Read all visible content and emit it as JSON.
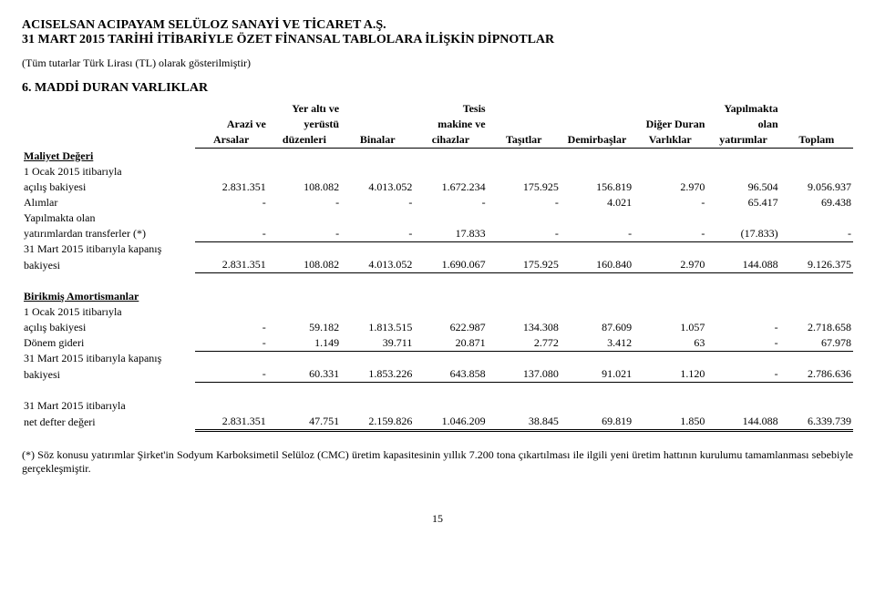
{
  "header": {
    "company": "ACISELSAN ACIPAYAM SELÜLOZ SANAYİ VE TİCARET A.Ş.",
    "report": "31 MART 2015 TARİHİ İTİBARİYLE ÖZET FİNANSAL TABLOLARA İLİŞKİN DİPNOTLAR",
    "currency_note": "(Tüm tutarlar Türk Lirası (TL) olarak gösterilmiştir)"
  },
  "section": {
    "number_title": "6.    MADDİ DURAN VARLIKLAR"
  },
  "columns": {
    "c1a": "Arazi ve",
    "c1b": "Arsalar",
    "c2a": "Yer altı ve",
    "c2b": "yerüstü",
    "c2c": "düzenleri",
    "c3": "Binalar",
    "c4a": "Tesis",
    "c4b": "makine ve",
    "c4c": "cihazlar",
    "c5": "Taşıtlar",
    "c6": "Demirbaşlar",
    "c7a": "Diğer Duran",
    "c7b": "Varlıklar",
    "c8a": "Yapılmakta",
    "c8b": "olan",
    "c8c": "yatırımlar",
    "c9": "Toplam"
  },
  "sections": {
    "cost": "Maliyet Değeri",
    "dep": "Birikmiş Amortismanlar"
  },
  "rows": {
    "r1": {
      "label": "1 Ocak 2015 itibarıyla"
    },
    "r1b": {
      "label": "açılış bakiyesi",
      "v": [
        "2.831.351",
        "108.082",
        "4.013.052",
        "1.672.234",
        "175.925",
        "156.819",
        "2.970",
        "96.504",
        "9.056.937"
      ]
    },
    "r2": {
      "label": "Alımlar",
      "v": [
        "-",
        "-",
        "-",
        "-",
        "-",
        "4.021",
        "-",
        "65.417",
        "69.438"
      ]
    },
    "r3": {
      "label": "Yapılmakta olan"
    },
    "r3b": {
      "label": "yatırımlardan transferler (*)",
      "v": [
        "-",
        "-",
        "-",
        "17.833",
        "-",
        "-",
        "-",
        "(17.833)",
        "-"
      ]
    },
    "r4": {
      "label": "31 Mart 2015 itibarıyla kapanış"
    },
    "r4b": {
      "label": "bakiyesi",
      "v": [
        "2.831.351",
        "108.082",
        "4.013.052",
        "1.690.067",
        "175.925",
        "160.840",
        "2.970",
        "144.088",
        "9.126.375"
      ]
    },
    "d1": {
      "label": "1 Ocak 2015 itibarıyla"
    },
    "d1b": {
      "label": "açılış bakiyesi",
      "v": [
        "-",
        "59.182",
        "1.813.515",
        "622.987",
        "134.308",
        "87.609",
        "1.057",
        "-",
        "2.718.658"
      ]
    },
    "d2": {
      "label": "Dönem gideri",
      "v": [
        "-",
        "1.149",
        "39.711",
        "20.871",
        "2.772",
        "3.412",
        "63",
        "-",
        "67.978"
      ]
    },
    "d3": {
      "label": "31 Mart 2015 itibarıyla kapanış"
    },
    "d3b": {
      "label": "bakiyesi",
      "v": [
        "-",
        "60.331",
        "1.853.226",
        "643.858",
        "137.080",
        "91.021",
        "1.120",
        "-",
        "2.786.636"
      ]
    },
    "n1": {
      "label": "31 Mart 2015 itibarıyla"
    },
    "n1b": {
      "label": "net defter değeri",
      "v": [
        "2.831.351",
        "47.751",
        "2.159.826",
        "1.046.209",
        "38.845",
        "69.819",
        "1.850",
        "144.088",
        "6.339.739"
      ]
    }
  },
  "footnote": "(*) Söz konusu yatırımlar Şirket'in Sodyum Karboksimetil Selüloz (CMC) üretim kapasitesinin yıllık 7.200 tona çıkartılması ile ilgili yeni üretim hattının kurulumu tamamlanması sebebiyle gerçekleşmiştir.",
  "page": "15"
}
